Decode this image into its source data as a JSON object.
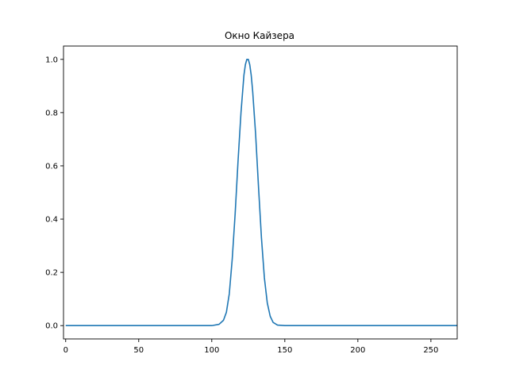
{
  "chart_data": {
    "type": "line",
    "title": "Окно Кайзера",
    "xlabel": "",
    "ylabel": "",
    "xlim": [
      -1.5,
      268
    ],
    "ylim": [
      -0.05,
      1.05
    ],
    "xticks": [
      0,
      50,
      100,
      150,
      200,
      250
    ],
    "yticks": [
      0.0,
      0.2,
      0.4,
      0.6,
      0.8,
      1.0
    ],
    "xtick_labels": [
      "0",
      "50",
      "100",
      "150",
      "200",
      "250"
    ],
    "ytick_labels": [
      "0.0",
      "0.2",
      "0.4",
      "0.6",
      "0.8",
      "1.0"
    ],
    "grid": false,
    "series": [
      {
        "color": "#1f77b4",
        "x": [
          0,
          20,
          40,
          60,
          80,
          100,
          105,
          108,
          110,
          112,
          114,
          116,
          118,
          120,
          122,
          123,
          124,
          125,
          126,
          127,
          128,
          130,
          132,
          134,
          136,
          138,
          140,
          142,
          145,
          150,
          170,
          200,
          230,
          268
        ],
        "y": [
          0.0,
          0.0,
          0.0,
          0.0,
          0.0,
          0.0,
          0.005,
          0.02,
          0.05,
          0.12,
          0.25,
          0.42,
          0.62,
          0.8,
          0.94,
          0.98,
          1.0,
          1.0,
          0.98,
          0.94,
          0.88,
          0.72,
          0.52,
          0.33,
          0.18,
          0.085,
          0.035,
          0.012,
          0.002,
          0.0,
          0.0,
          0.0,
          0.0,
          0.0
        ]
      }
    ]
  }
}
